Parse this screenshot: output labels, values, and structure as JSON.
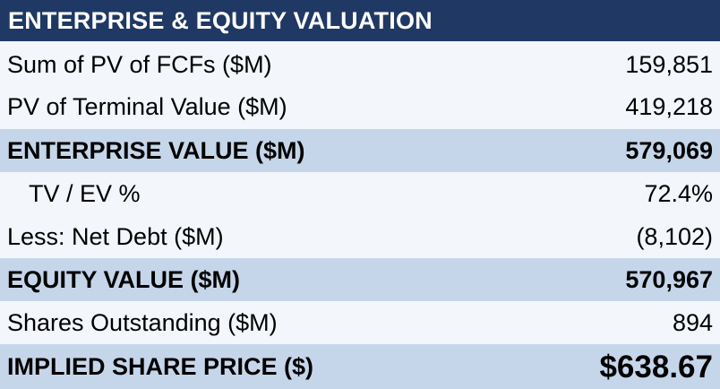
{
  "title": "ENTERPRISE & EQUITY VALUATION",
  "rows": [
    {
      "label": "Sum of PV of FCFs ($M)",
      "value": "159,851"
    },
    {
      "label": "PV of Terminal Value ($M)",
      "value": "419,218"
    },
    {
      "label": "ENTERPRISE VALUE ($M)",
      "value": "579,069"
    },
    {
      "label": "TV / EV %",
      "value": "72.4%"
    },
    {
      "label": "Less: Net Debt ($M)",
      "value": "(8,102)"
    },
    {
      "label": "EQUITY VALUE ($M)",
      "value": "570,967"
    },
    {
      "label": "Shares Outstanding ($M)",
      "value": "894"
    },
    {
      "label": "IMPLIED SHARE PRICE ($)",
      "value": "$638.67"
    }
  ],
  "colors": {
    "header_bg": "#1f3864",
    "header_text": "#ffffff",
    "band_bg": "#c6d6ea",
    "row_bg": "#f3f6fb"
  }
}
